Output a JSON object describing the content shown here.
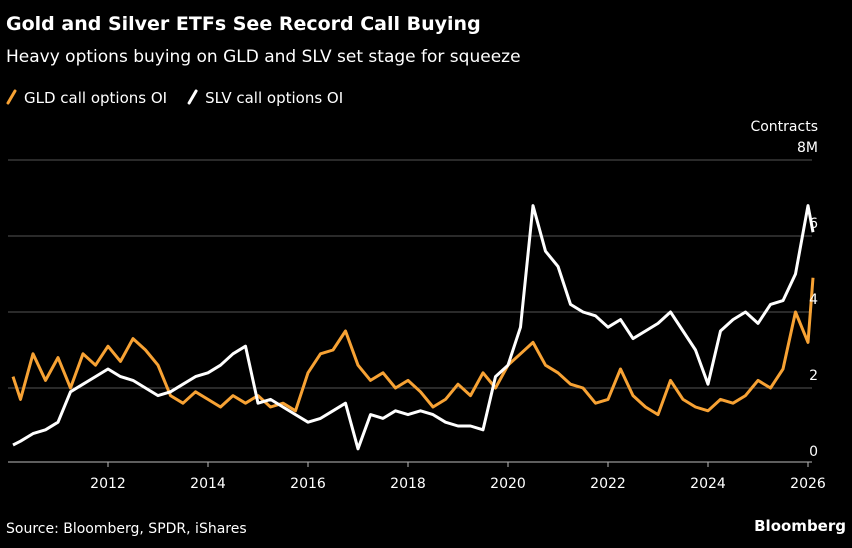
{
  "chart_data": {
    "type": "line",
    "title": "Gold and Silver ETFs See Record Call Buying",
    "subtitle": "Heavy options buying on GLD and SLV set stage for squeeze",
    "y_axis_label": "Contracts",
    "source": "Source: Bloomberg, SPDR, iShares",
    "credit": "Bloomberg",
    "x": [
      2010.1,
      2010.25,
      2010.5,
      2010.75,
      2011,
      2011.25,
      2011.5,
      2011.75,
      2012,
      2012.25,
      2012.5,
      2012.75,
      2013,
      2013.25,
      2013.5,
      2013.75,
      2014,
      2014.25,
      2014.5,
      2014.75,
      2015,
      2015.25,
      2015.5,
      2015.75,
      2016,
      2016.25,
      2016.5,
      2016.75,
      2017,
      2017.25,
      2017.5,
      2017.75,
      2018,
      2018.25,
      2018.5,
      2018.75,
      2019,
      2019.25,
      2019.5,
      2019.75,
      2020,
      2020.25,
      2020.5,
      2020.75,
      2021,
      2021.25,
      2021.5,
      2021.75,
      2022,
      2022.25,
      2022.5,
      2022.75,
      2023,
      2023.25,
      2023.5,
      2023.75,
      2024,
      2024.25,
      2024.5,
      2024.75,
      2025,
      2025.25,
      2025.5,
      2025.75,
      2026,
      2026.1
    ],
    "series": [
      {
        "name": "GLD call options OI",
        "color": "#f7a234",
        "values": [
          2.3,
          1.7,
          2.9,
          2.2,
          2.8,
          2.0,
          2.9,
          2.6,
          3.1,
          2.7,
          3.3,
          3.0,
          2.6,
          1.8,
          1.6,
          1.9,
          1.7,
          1.5,
          1.8,
          1.6,
          1.8,
          1.5,
          1.6,
          1.4,
          2.4,
          2.9,
          3.0,
          3.5,
          2.6,
          2.2,
          2.4,
          2.0,
          2.2,
          1.9,
          1.5,
          1.7,
          2.1,
          1.8,
          2.4,
          2.0,
          2.6,
          2.9,
          3.2,
          2.6,
          2.4,
          2.1,
          2.0,
          1.6,
          1.7,
          2.5,
          1.8,
          1.5,
          1.3,
          2.2,
          1.7,
          1.5,
          1.4,
          1.7,
          1.6,
          1.8,
          2.2,
          2.0,
          2.5,
          4.0,
          3.2,
          4.9
        ]
      },
      {
        "name": "SLV call options OI",
        "color": "#ffffff",
        "values": [
          0.5,
          0.6,
          0.8,
          0.9,
          1.1,
          1.9,
          2.1,
          2.3,
          2.5,
          2.3,
          2.2,
          2.0,
          1.8,
          1.9,
          2.1,
          2.3,
          2.4,
          2.6,
          2.9,
          3.1,
          1.6,
          1.7,
          1.5,
          1.3,
          1.1,
          1.2,
          1.4,
          1.6,
          0.4,
          1.3,
          1.2,
          1.4,
          1.3,
          1.4,
          1.3,
          1.1,
          1.0,
          1.0,
          0.9,
          2.3,
          2.6,
          3.6,
          6.8,
          5.6,
          5.2,
          4.2,
          4.0,
          3.9,
          3.6,
          3.8,
          3.3,
          3.5,
          3.7,
          4.0,
          3.5,
          3.0,
          2.1,
          3.5,
          3.8,
          4.0,
          3.7,
          4.2,
          4.3,
          5.0,
          6.8,
          6.1
        ]
      }
    ],
    "xlim": [
      2010,
      2026.2
    ],
    "xticks": [
      2012,
      2014,
      2016,
      2018,
      2020,
      2022,
      2024,
      2026
    ],
    "ylim": [
      0,
      8
    ],
    "yticks": [
      0,
      2,
      4,
      6,
      {
        "value": 8,
        "label": "8M"
      }
    ],
    "grid": true
  }
}
